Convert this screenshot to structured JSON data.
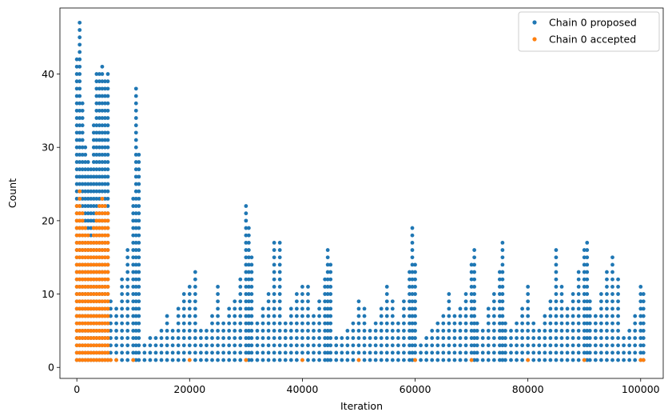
{
  "chart_data": {
    "type": "scatter",
    "title": "",
    "xlabel": "Iteration",
    "ylabel": "Count",
    "xlim": [
      -3000,
      104000
    ],
    "ylim": [
      -1.5,
      49
    ],
    "xticks": [
      0,
      20000,
      40000,
      60000,
      80000,
      100000
    ],
    "xtick_labels": [
      "0",
      "20000",
      "40000",
      "60000",
      "80000",
      "100000"
    ],
    "yticks": [
      0,
      10,
      20,
      30,
      40
    ],
    "ytick_labels": [
      "0",
      "10",
      "20",
      "30",
      "40"
    ],
    "grid": false,
    "legend": {
      "placement": "top-right",
      "entries": [
        "Chain 0 proposed",
        "Chain 0 accepted"
      ]
    },
    "series": [
      {
        "name": "Chain 0 proposed",
        "color": "#1f77b4",
        "marker": "dot",
        "columns": [
          {
            "x": 0,
            "ymax": 42
          },
          {
            "x": 500,
            "ymax": 47
          },
          {
            "x": 1000,
            "ymax": 36
          },
          {
            "x": 1500,
            "ymax": 30
          },
          {
            "x": 2000,
            "ymax": 28
          },
          {
            "x": 2500,
            "ymax": 27
          },
          {
            "x": 3000,
            "ymax": 33
          },
          {
            "x": 3500,
            "ymax": 40
          },
          {
            "x": 4000,
            "ymax": 40
          },
          {
            "x": 4500,
            "ymax": 41
          },
          {
            "x": 5000,
            "ymax": 39
          },
          {
            "x": 5500,
            "ymax": 40
          },
          {
            "x": 6000,
            "ymax": 9
          },
          {
            "x": 7000,
            "ymax": 8
          },
          {
            "x": 8000,
            "ymax": 12
          },
          {
            "x": 9000,
            "ymax": 16
          },
          {
            "x": 10000,
            "ymax": 23
          },
          {
            "x": 10500,
            "ymax": 38
          },
          {
            "x": 11000,
            "ymax": 29
          },
          {
            "x": 12000,
            "ymax": 3
          },
          {
            "x": 13000,
            "ymax": 4
          },
          {
            "x": 14000,
            "ymax": 4
          },
          {
            "x": 15000,
            "ymax": 5
          },
          {
            "x": 16000,
            "ymax": 7
          },
          {
            "x": 17000,
            "ymax": 5
          },
          {
            "x": 18000,
            "ymax": 8
          },
          {
            "x": 19000,
            "ymax": 10
          },
          {
            "x": 20000,
            "ymax": 11
          },
          {
            "x": 21000,
            "ymax": 13
          },
          {
            "x": 22000,
            "ymax": 5
          },
          {
            "x": 23000,
            "ymax": 5
          },
          {
            "x": 24000,
            "ymax": 7
          },
          {
            "x": 25000,
            "ymax": 11
          },
          {
            "x": 26000,
            "ymax": 6
          },
          {
            "x": 27000,
            "ymax": 8
          },
          {
            "x": 28000,
            "ymax": 9
          },
          {
            "x": 29000,
            "ymax": 12
          },
          {
            "x": 30000,
            "ymax": 22
          },
          {
            "x": 30500,
            "ymax": 19
          },
          {
            "x": 31000,
            "ymax": 15
          },
          {
            "x": 32000,
            "ymax": 6
          },
          {
            "x": 33000,
            "ymax": 8
          },
          {
            "x": 34000,
            "ymax": 10
          },
          {
            "x": 35000,
            "ymax": 17
          },
          {
            "x": 36000,
            "ymax": 17
          },
          {
            "x": 37000,
            "ymax": 6
          },
          {
            "x": 38000,
            "ymax": 8
          },
          {
            "x": 39000,
            "ymax": 10
          },
          {
            "x": 40000,
            "ymax": 11
          },
          {
            "x": 41000,
            "ymax": 11
          },
          {
            "x": 42000,
            "ymax": 7
          },
          {
            "x": 43000,
            "ymax": 9
          },
          {
            "x": 44000,
            "ymax": 12
          },
          {
            "x": 44500,
            "ymax": 16
          },
          {
            "x": 45000,
            "ymax": 14
          },
          {
            "x": 46000,
            "ymax": 4
          },
          {
            "x": 47000,
            "ymax": 4
          },
          {
            "x": 48000,
            "ymax": 5
          },
          {
            "x": 49000,
            "ymax": 6
          },
          {
            "x": 50000,
            "ymax": 9
          },
          {
            "x": 51000,
            "ymax": 8
          },
          {
            "x": 52000,
            "ymax": 5
          },
          {
            "x": 53000,
            "ymax": 6
          },
          {
            "x": 54000,
            "ymax": 8
          },
          {
            "x": 55000,
            "ymax": 11
          },
          {
            "x": 56000,
            "ymax": 9
          },
          {
            "x": 57000,
            "ymax": 6
          },
          {
            "x": 58000,
            "ymax": 9
          },
          {
            "x": 59000,
            "ymax": 13
          },
          {
            "x": 59500,
            "ymax": 19
          },
          {
            "x": 60000,
            "ymax": 14
          },
          {
            "x": 61000,
            "ymax": 3
          },
          {
            "x": 62000,
            "ymax": 4
          },
          {
            "x": 63000,
            "ymax": 5
          },
          {
            "x": 64000,
            "ymax": 6
          },
          {
            "x": 65000,
            "ymax": 7
          },
          {
            "x": 66000,
            "ymax": 10
          },
          {
            "x": 67000,
            "ymax": 7
          },
          {
            "x": 68000,
            "ymax": 8
          },
          {
            "x": 69000,
            "ymax": 10
          },
          {
            "x": 70000,
            "ymax": 14
          },
          {
            "x": 70500,
            "ymax": 16
          },
          {
            "x": 71000,
            "ymax": 6
          },
          {
            "x": 72000,
            "ymax": 5
          },
          {
            "x": 73000,
            "ymax": 8
          },
          {
            "x": 74000,
            "ymax": 10
          },
          {
            "x": 75000,
            "ymax": 13
          },
          {
            "x": 75500,
            "ymax": 17
          },
          {
            "x": 76000,
            "ymax": 6
          },
          {
            "x": 77000,
            "ymax": 5
          },
          {
            "x": 78000,
            "ymax": 6
          },
          {
            "x": 79000,
            "ymax": 8
          },
          {
            "x": 80000,
            "ymax": 11
          },
          {
            "x": 81000,
            "ymax": 6
          },
          {
            "x": 82000,
            "ymax": 5
          },
          {
            "x": 83000,
            "ymax": 7
          },
          {
            "x": 84000,
            "ymax": 9
          },
          {
            "x": 85000,
            "ymax": 16
          },
          {
            "x": 86000,
            "ymax": 11
          },
          {
            "x": 87000,
            "ymax": 8
          },
          {
            "x": 88000,
            "ymax": 10
          },
          {
            "x": 89000,
            "ymax": 13
          },
          {
            "x": 90000,
            "ymax": 16
          },
          {
            "x": 90500,
            "ymax": 17
          },
          {
            "x": 91000,
            "ymax": 9
          },
          {
            "x": 92000,
            "ymax": 7
          },
          {
            "x": 93000,
            "ymax": 10
          },
          {
            "x": 94000,
            "ymax": 13
          },
          {
            "x": 95000,
            "ymax": 15
          },
          {
            "x": 96000,
            "ymax": 12
          },
          {
            "x": 97000,
            "ymax": 4
          },
          {
            "x": 98000,
            "ymax": 5
          },
          {
            "x": 99000,
            "ymax": 7
          },
          {
            "x": 100000,
            "ymax": 11
          },
          {
            "x": 100500,
            "ymax": 10
          }
        ]
      },
      {
        "name": "Chain 0 accepted",
        "color": "#ff7f0e",
        "marker": "dot",
        "columns": [
          {
            "x": 0,
            "ymax": 22
          },
          {
            "x": 500,
            "ymax": 24
          },
          {
            "x": 1000,
            "ymax": 21
          },
          {
            "x": 1500,
            "ymax": 19
          },
          {
            "x": 2000,
            "ymax": 18
          },
          {
            "x": 2500,
            "ymax": 17
          },
          {
            "x": 3000,
            "ymax": 19
          },
          {
            "x": 3500,
            "ymax": 21
          },
          {
            "x": 4000,
            "ymax": 22
          },
          {
            "x": 4500,
            "ymax": 23
          },
          {
            "x": 5000,
            "ymax": 22
          },
          {
            "x": 5500,
            "ymax": 21
          },
          {
            "x": 6000,
            "ymax": 1
          },
          {
            "x": 7000,
            "ymax": 1
          },
          {
            "x": 10000,
            "ymax": 1
          },
          {
            "x": 20000,
            "ymax": 1
          },
          {
            "x": 30000,
            "ymax": 1
          },
          {
            "x": 40000,
            "ymax": 1
          },
          {
            "x": 50000,
            "ymax": 1
          },
          {
            "x": 60000,
            "ymax": 1
          },
          {
            "x": 70000,
            "ymax": 1
          },
          {
            "x": 80000,
            "ymax": 1
          },
          {
            "x": 90000,
            "ymax": 1
          },
          {
            "x": 100000,
            "ymax": 1
          },
          {
            "x": 100500,
            "ymax": 1
          }
        ]
      }
    ]
  }
}
